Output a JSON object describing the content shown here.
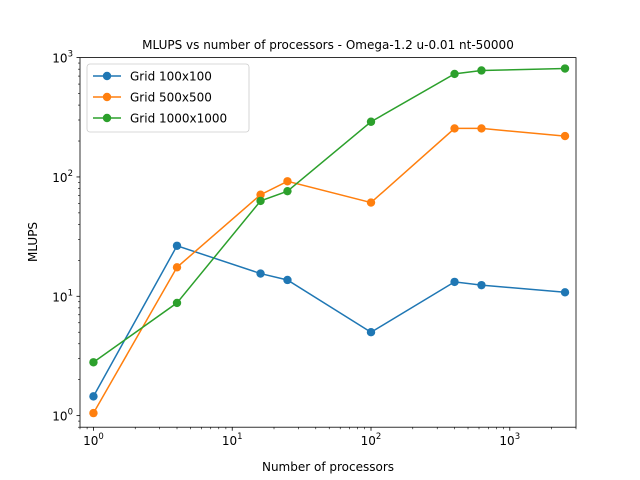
{
  "chart_data": {
    "type": "line",
    "title": "MLUPS vs number of processors - Omega-1.2  u-0.01  nt-50000",
    "xlabel": "Number of processors",
    "ylabel": "MLUPS",
    "xscale": "log",
    "yscale": "log",
    "xlim": [
      0.8,
      3000
    ],
    "ylim": [
      0.8,
      1000
    ],
    "x": [
      1,
      4,
      16,
      25,
      100,
      400,
      625,
      2500
    ],
    "x_ticks": [
      {
        "value": 1,
        "base": "10",
        "exp": "0"
      },
      {
        "value": 10,
        "base": "10",
        "exp": "1"
      },
      {
        "value": 100,
        "base": "10",
        "exp": "2"
      },
      {
        "value": 1000,
        "base": "10",
        "exp": "3"
      }
    ],
    "y_ticks": [
      {
        "value": 1,
        "base": "10",
        "exp": "0"
      },
      {
        "value": 10,
        "base": "10",
        "exp": "1"
      },
      {
        "value": 100,
        "base": "10",
        "exp": "2"
      },
      {
        "value": 1000,
        "base": "10",
        "exp": "3"
      }
    ],
    "grid": false,
    "legend_position": "top-left",
    "series": [
      {
        "name": "Grid 100x100",
        "color": "#1f77b4",
        "values": [
          1.45,
          26.5,
          15.5,
          13.7,
          5.0,
          13.2,
          12.4,
          10.8
        ]
      },
      {
        "name": "Grid 500x500",
        "color": "#ff7f0e",
        "values": [
          1.05,
          17.5,
          71,
          92,
          61,
          255,
          255,
          220
        ]
      },
      {
        "name": "Grid 1000x1000",
        "color": "#2ca02c",
        "values": [
          2.8,
          8.8,
          63,
          76,
          290,
          730,
          780,
          810
        ]
      }
    ]
  }
}
